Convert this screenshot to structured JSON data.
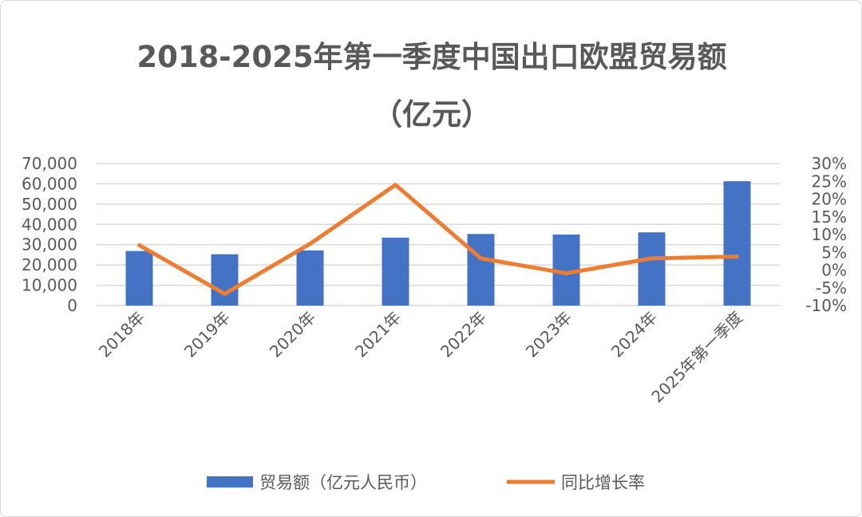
{
  "chart_data": {
    "type": "bar+line",
    "title": "2018-2025年第一季度中国出口欧盟贸易额",
    "subtitle": "（亿元）",
    "categories": [
      "2018年",
      "2019年",
      "2020年",
      "2021年",
      "2022年",
      "2023年",
      "2024年",
      "2025年第一季度"
    ],
    "series": [
      {
        "name": "贸易额（亿元人民币）",
        "type": "bar",
        "axis": "left",
        "color": "#4472C4",
        "values": [
          26900,
          25300,
          27200,
          33500,
          35300,
          35000,
          36100,
          61300
        ]
      },
      {
        "name": "同比增长率",
        "type": "line",
        "axis": "right",
        "color": "#ED7D31",
        "values": [
          7.0,
          -6.7,
          7.4,
          24.0,
          3.3,
          -0.9,
          3.3,
          3.8
        ]
      }
    ],
    "left_axis": {
      "ylim": [
        0,
        70000
      ],
      "ticks": [
        "0",
        "10,000",
        "20,000",
        "30,000",
        "40,000",
        "50,000",
        "60,000",
        "70,000"
      ]
    },
    "right_axis": {
      "ylim": [
        -10,
        30
      ],
      "ticks": [
        "-10%",
        "-5%",
        "0%",
        "5%",
        "10%",
        "15%",
        "20%",
        "25%",
        "30%"
      ]
    },
    "grid": true,
    "legend": "bottom"
  }
}
